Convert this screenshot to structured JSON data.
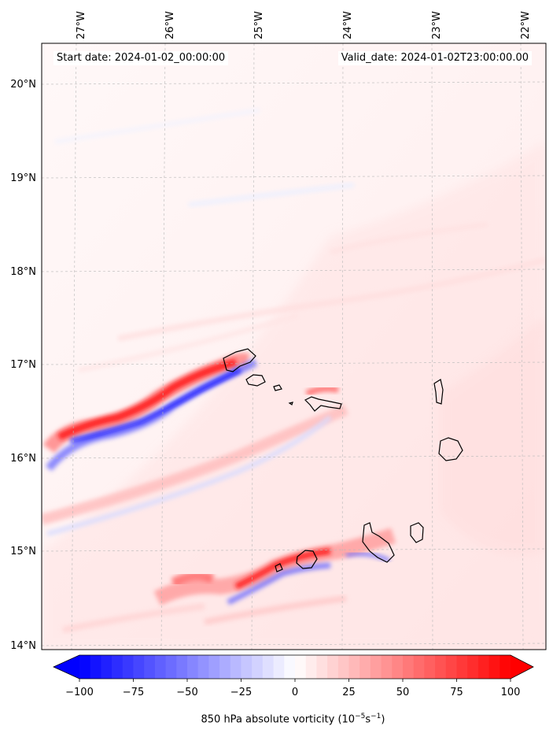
{
  "figure": {
    "start_date_label": "Start date: 2024-01-02_00:00:00",
    "valid_date_label": "Valid_date: 2024-01-02T23:00:00.00"
  },
  "map": {
    "lon_labels": [
      "27°W",
      "26°W",
      "25°W",
      "24°W",
      "23°W",
      "22°W"
    ],
    "lat_labels": [
      "20°N",
      "19°N",
      "18°N",
      "17°N",
      "16°N",
      "15°N",
      "14°N"
    ],
    "islands": [
      "Santo Antão",
      "São Vicente",
      "Santa Luzia",
      "São Nicolau",
      "Sal",
      "Boa Vista",
      "Maio",
      "Santiago",
      "Fogo",
      "Brava"
    ]
  },
  "colorbar": {
    "min": -100,
    "max": 100,
    "ticks": [
      "−100",
      "−75",
      "−50",
      "−25",
      "0",
      "25",
      "50",
      "75",
      "100"
    ],
    "tick_values": [
      -100,
      -75,
      -50,
      -25,
      0,
      25,
      50,
      75,
      100
    ],
    "label_main": "850 hPa absolute vorticity (10",
    "label_exp1": "−5",
    "label_mid": "s",
    "label_exp2": "−1",
    "label_end": ")",
    "neg_color": "#0000ff",
    "pos_color": "#ff0000",
    "zero_color": "#ffffff",
    "extend": "both"
  }
}
